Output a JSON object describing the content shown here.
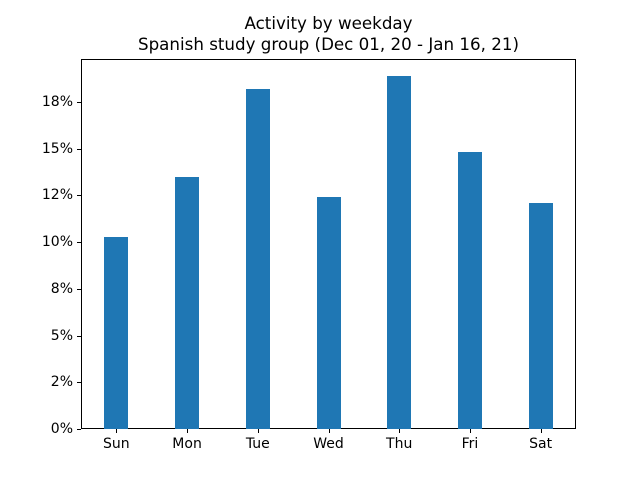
{
  "chart_data": {
    "type": "bar",
    "title": "Activity by weekday",
    "subtitle": "Spanish study group (Dec 01, 20 - Jan 16, 21)",
    "categories": [
      "Sun",
      "Mon",
      "Tue",
      "Wed",
      "Thu",
      "Fri",
      "Sat"
    ],
    "values": [
      10.3,
      13.5,
      18.2,
      12.4,
      18.9,
      14.8,
      12.1
    ],
    "value_unit": "%",
    "xlabel": "",
    "ylabel": "",
    "ylim": [
      0,
      19.8
    ],
    "yticks": [
      {
        "value": 0.0,
        "label": "0%"
      },
      {
        "value": 2.5,
        "label": "2%"
      },
      {
        "value": 5.0,
        "label": "5%"
      },
      {
        "value": 7.5,
        "label": "8%"
      },
      {
        "value": 10.0,
        "label": "10%"
      },
      {
        "value": 12.5,
        "label": "12%"
      },
      {
        "value": 15.0,
        "label": "15%"
      },
      {
        "value": 17.5,
        "label": "18%"
      }
    ],
    "bar_color": "#1f77b4",
    "axis_color": "#000000",
    "background_color": "#ffffff",
    "grid": false,
    "legend": false
  }
}
